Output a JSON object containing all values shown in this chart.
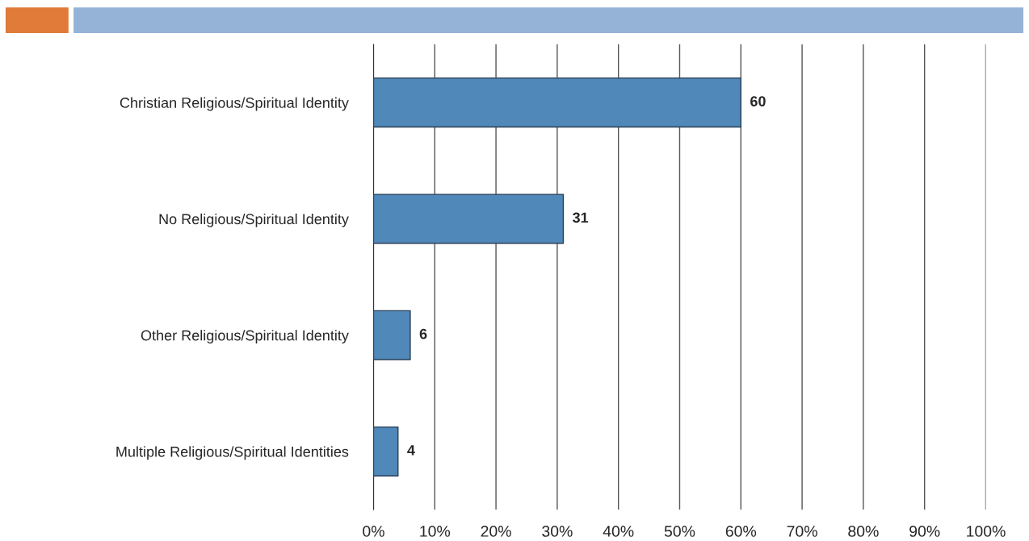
{
  "chart_data": {
    "type": "bar",
    "orientation": "horizontal",
    "categories": [
      "Christian Religious/Spiritual Identity",
      "No Religious/Spiritual Identity",
      "Other Religious/Spiritual Identity",
      "Multiple Religious/Spiritual Identities"
    ],
    "values": [
      60,
      31,
      6,
      4
    ],
    "color": "#4f88b9",
    "data_labels": true,
    "xlim": [
      0,
      100
    ],
    "xticks": [
      {
        "value": 0,
        "label": "0%"
      },
      {
        "value": 10,
        "label": "10%"
      },
      {
        "value": 20,
        "label": "20%"
      },
      {
        "value": 30,
        "label": "30%"
      },
      {
        "value": 40,
        "label": "40%"
      },
      {
        "value": 50,
        "label": "50%"
      },
      {
        "value": 60,
        "label": "60%"
      },
      {
        "value": 70,
        "label": "70%"
      },
      {
        "value": 80,
        "label": "80%"
      },
      {
        "value": 90,
        "label": "90%"
      },
      {
        "value": 100,
        "label": "100%"
      }
    ],
    "grid": "x",
    "legend": false
  }
}
